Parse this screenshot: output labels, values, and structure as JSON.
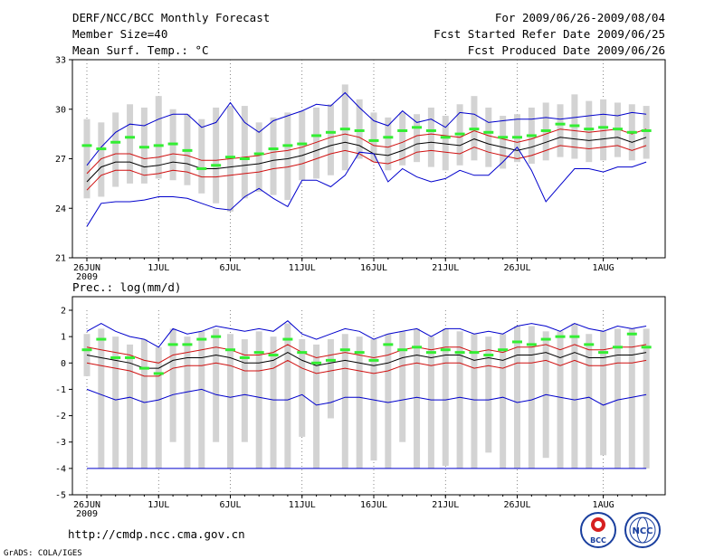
{
  "header": {
    "title": "DERF/NCC/BCC Monthly Forecast",
    "member_size": "Member Size=40",
    "variable": "Mean Surf. Temp.: °C",
    "forecast_period": "For 2009/06/26-2009/08/04",
    "fcst_started": "Fcst Started Refer Date 2009/06/25",
    "fcst_produced": "Fcst Produced Date 2009/06/26"
  },
  "footer": {
    "url": "http://cmdp.ncc.cma.gov.cn",
    "grads_credit": "GrADS: COLA/IGES",
    "logo_bcc": "BCC",
    "logo_ncc": "NCC"
  },
  "colors": {
    "bar": "#d3d3d3",
    "mean_line": "#000000",
    "sd_lines": "#d01010",
    "extreme_lines": "#0000cc",
    "obs_dash": "#33ee33"
  },
  "chart_data": [
    {
      "type": "line",
      "title": "Mean Surf. Temp.: °C",
      "xlabel": "",
      "ylabel": "",
      "ylim": [
        21,
        33
      ],
      "yticks": [
        "33",
        "30",
        "27",
        "24",
        "21"
      ],
      "xticks": [
        "26JUN",
        "1JUL",
        "6JUL",
        "11JUL",
        "16JUL",
        "21JUL",
        "26JUL",
        "1AUG"
      ],
      "xtick_year": "2009",
      "xtick_days": [
        0,
        5,
        10,
        15,
        20,
        25,
        30,
        36
      ],
      "days": 40,
      "series": [
        {
          "name": "max",
          "values": [
            26.6,
            27.7,
            28.6,
            29.1,
            29.0,
            29.4,
            29.7,
            29.7,
            28.9,
            29.2,
            30.4,
            29.2,
            28.6,
            29.3,
            29.6,
            29.9,
            30.3,
            30.2,
            31.0,
            30.1,
            29.3,
            29.0,
            29.9,
            29.2,
            29.4,
            28.9,
            29.8,
            29.7,
            29.2,
            29.3,
            29.4,
            29.4,
            29.5,
            29.4,
            29.5,
            29.6,
            29.7,
            29.6,
            29.8,
            29.7
          ]
        },
        {
          "name": "mean+sd",
          "values": [
            26.1,
            27.0,
            27.3,
            27.3,
            27.0,
            27.1,
            27.3,
            27.2,
            26.9,
            26.9,
            27.0,
            27.1,
            27.2,
            27.4,
            27.5,
            27.7,
            28.0,
            28.3,
            28.5,
            28.3,
            27.8,
            27.7,
            28.0,
            28.4,
            28.5,
            28.4,
            28.3,
            28.7,
            28.4,
            28.2,
            28.0,
            28.2,
            28.5,
            28.8,
            28.7,
            28.6,
            28.7,
            28.8,
            28.5,
            28.8
          ]
        },
        {
          "name": "mean",
          "values": [
            25.6,
            26.5,
            26.8,
            26.8,
            26.5,
            26.6,
            26.8,
            26.7,
            26.4,
            26.4,
            26.5,
            26.6,
            26.7,
            26.9,
            27.0,
            27.2,
            27.5,
            27.8,
            28.0,
            27.8,
            27.3,
            27.2,
            27.5,
            27.9,
            28.0,
            27.9,
            27.8,
            28.2,
            27.9,
            27.7,
            27.5,
            27.7,
            28.0,
            28.3,
            28.2,
            28.1,
            28.2,
            28.3,
            28.0,
            28.3
          ]
        },
        {
          "name": "mean-sd",
          "values": [
            25.1,
            26.0,
            26.3,
            26.3,
            26.0,
            26.1,
            26.3,
            26.2,
            25.9,
            25.9,
            26.0,
            26.1,
            26.2,
            26.4,
            26.5,
            26.7,
            27.0,
            27.3,
            27.5,
            27.3,
            26.8,
            26.7,
            27.0,
            27.4,
            27.5,
            27.4,
            27.3,
            27.7,
            27.4,
            27.2,
            27.0,
            27.2,
            27.5,
            27.8,
            27.7,
            27.6,
            27.7,
            27.8,
            27.5,
            27.8
          ]
        },
        {
          "name": "min",
          "values": [
            22.9,
            24.3,
            24.4,
            24.4,
            24.5,
            24.7,
            24.7,
            24.6,
            24.3,
            24.0,
            23.9,
            24.7,
            25.2,
            24.6,
            24.1,
            25.7,
            25.7,
            25.3,
            26.0,
            27.4,
            27.3,
            25.6,
            26.4,
            25.9,
            25.6,
            25.8,
            26.3,
            26.0,
            26.0,
            26.8,
            27.7,
            26.3,
            24.4,
            25.4,
            26.4,
            26.4,
            26.2,
            26.5,
            26.5,
            26.8
          ]
        }
      ],
      "bar_low": [
        24.6,
        24.7,
        25.3,
        25.5,
        25.5,
        25.8,
        25.7,
        25.4,
        24.9,
        24.3,
        23.8,
        24.6,
        25.0,
        24.8,
        24.5,
        25.7,
        25.8,
        26.0,
        26.3,
        27.0,
        26.8,
        26.3,
        26.6,
        26.8,
        26.5,
        26.3,
        26.6,
        26.9,
        26.5,
        26.4,
        26.8,
        26.7,
        26.9,
        27.1,
        27.0,
        26.8,
        26.9,
        27.1,
        26.9,
        27.0
      ],
      "bar_high": [
        29.4,
        29.2,
        29.8,
        30.3,
        30.1,
        30.8,
        30.0,
        29.7,
        29.4,
        30.1,
        30.2,
        30.2,
        29.2,
        29.5,
        29.8,
        29.9,
        30.1,
        30.3,
        31.5,
        30.6,
        29.8,
        29.5,
        29.8,
        29.7,
        30.1,
        29.6,
        30.3,
        30.8,
        30.1,
        29.6,
        29.7,
        30.1,
        30.4,
        30.3,
        30.9,
        30.5,
        30.6,
        30.4,
        30.3,
        30.2
      ],
      "observed": [
        27.8,
        27.6,
        28.0,
        28.3,
        27.7,
        27.8,
        27.9,
        27.5,
        26.4,
        26.6,
        27.1,
        27.0,
        27.3,
        27.6,
        27.8,
        27.9,
        28.4,
        28.6,
        28.8,
        28.7,
        28.1,
        28.3,
        28.7,
        28.9,
        28.7,
        28.3,
        28.5,
        28.8,
        28.6,
        28.3,
        28.3,
        28.4,
        28.7,
        29.1,
        29.0,
        28.8,
        28.9,
        28.8,
        28.6,
        28.7
      ]
    },
    {
      "type": "line",
      "title": "Prec.: log(mm/d)",
      "xlabel": "",
      "ylabel": "",
      "ylim": [
        -5,
        2
      ],
      "yticks": [
        "2",
        "1",
        "0",
        "-1",
        "-2",
        "-3",
        "-4",
        "-5"
      ],
      "xticks": [
        "26JUN",
        "1JUL",
        "6JUL",
        "11JUL",
        "16JUL",
        "21JUL",
        "26JUL",
        "1AUG"
      ],
      "xtick_year": "2009",
      "xtick_days": [
        0,
        5,
        10,
        15,
        20,
        25,
        30,
        36
      ],
      "days": 40,
      "series": [
        {
          "name": "max",
          "values": [
            1.2,
            1.5,
            1.2,
            1.0,
            0.9,
            0.6,
            1.3,
            1.1,
            1.2,
            1.4,
            1.3,
            1.2,
            1.3,
            1.2,
            1.6,
            1.1,
            0.9,
            1.1,
            1.3,
            1.2,
            0.9,
            1.1,
            1.2,
            1.3,
            1.0,
            1.3,
            1.3,
            1.1,
            1.2,
            1.1,
            1.4,
            1.5,
            1.4,
            1.2,
            1.5,
            1.3,
            1.2,
            1.4,
            1.3,
            1.4
          ]
        },
        {
          "name": "mean+sd",
          "values": [
            0.6,
            0.5,
            0.4,
            0.3,
            0.1,
            0.0,
            0.3,
            0.4,
            0.5,
            0.6,
            0.5,
            0.3,
            0.3,
            0.4,
            0.7,
            0.4,
            0.2,
            0.3,
            0.4,
            0.3,
            0.2,
            0.3,
            0.5,
            0.6,
            0.5,
            0.6,
            0.6,
            0.4,
            0.5,
            0.4,
            0.6,
            0.6,
            0.7,
            0.5,
            0.7,
            0.5,
            0.5,
            0.6,
            0.6,
            0.7
          ]
        },
        {
          "name": "mean",
          "values": [
            0.3,
            0.2,
            0.1,
            0.0,
            -0.2,
            -0.2,
            0.1,
            0.2,
            0.2,
            0.3,
            0.2,
            0.0,
            0.0,
            0.1,
            0.4,
            0.1,
            -0.1,
            0.0,
            0.1,
            0.0,
            -0.1,
            0.0,
            0.2,
            0.3,
            0.2,
            0.3,
            0.3,
            0.1,
            0.2,
            0.1,
            0.3,
            0.3,
            0.4,
            0.2,
            0.4,
            0.2,
            0.2,
            0.3,
            0.3,
            0.4
          ]
        },
        {
          "name": "mean-sd",
          "values": [
            0.0,
            -0.1,
            -0.2,
            -0.3,
            -0.5,
            -0.5,
            -0.2,
            -0.1,
            -0.1,
            0.0,
            -0.1,
            -0.3,
            -0.3,
            -0.2,
            0.1,
            -0.2,
            -0.4,
            -0.3,
            -0.2,
            -0.3,
            -0.4,
            -0.3,
            -0.1,
            0.0,
            -0.1,
            0.0,
            0.0,
            -0.2,
            -0.1,
            -0.2,
            0.0,
            0.0,
            0.1,
            -0.1,
            0.1,
            -0.1,
            -0.1,
            0.0,
            0.0,
            0.1
          ]
        },
        {
          "name": "min",
          "values": [
            -1.0,
            -1.2,
            -1.4,
            -1.3,
            -1.5,
            -1.4,
            -1.2,
            -1.1,
            -1.0,
            -1.2,
            -1.3,
            -1.2,
            -1.3,
            -1.4,
            -1.4,
            -1.2,
            -1.6,
            -1.5,
            -1.3,
            -1.3,
            -1.4,
            -1.5,
            -1.4,
            -1.3,
            -1.4,
            -1.4,
            -1.3,
            -1.4,
            -1.4,
            -1.3,
            -1.5,
            -1.4,
            -1.2,
            -1.3,
            -1.4,
            -1.3,
            -1.6,
            -1.4,
            -1.3,
            -1.2
          ]
        }
      ],
      "bar_low": [
        -0.5,
        -4.0,
        -4.0,
        -4.0,
        -4.0,
        -4.0,
        -3.0,
        -4.0,
        -4.0,
        -3.0,
        -4.0,
        -3.0,
        -4.0,
        -4.0,
        -4.0,
        -2.8,
        -4.0,
        -2.1,
        -4.0,
        -4.0,
        -3.7,
        -4.0,
        -3.0,
        -4.0,
        -4.0,
        -3.9,
        -4.0,
        -4.0,
        -3.4,
        -4.0,
        -4.0,
        -4.0,
        -3.6,
        -4.0,
        -4.0,
        -4.0,
        -3.5,
        -4.0,
        -4.0,
        -4.0
      ],
      "bar_high": [
        1.1,
        1.3,
        1.0,
        0.7,
        0.9,
        0.6,
        1.3,
        1.0,
        1.2,
        1.3,
        1.1,
        0.9,
        1.2,
        1.0,
        1.5,
        0.9,
        0.7,
        0.9,
        1.1,
        1.0,
        0.9,
        1.1,
        1.2,
        1.3,
        1.0,
        1.3,
        1.2,
        1.1,
        1.0,
        1.1,
        1.4,
        1.4,
        1.2,
        1.2,
        1.5,
        1.1,
        1.2,
        1.3,
        1.3,
        1.3
      ],
      "observed": [
        0.5,
        0.9,
        0.2,
        0.2,
        -0.2,
        -0.4,
        0.7,
        0.7,
        0.9,
        1.0,
        0.5,
        0.2,
        0.4,
        0.3,
        0.9,
        0.4,
        0.0,
        0.1,
        0.5,
        0.4,
        0.1,
        0.7,
        0.5,
        0.6,
        0.4,
        0.5,
        0.4,
        0.4,
        0.3,
        0.5,
        0.8,
        0.7,
        0.9,
        1.0,
        1.0,
        0.7,
        0.4,
        0.6,
        1.1,
        0.6
      ],
      "floor_line": -4.0
    }
  ]
}
